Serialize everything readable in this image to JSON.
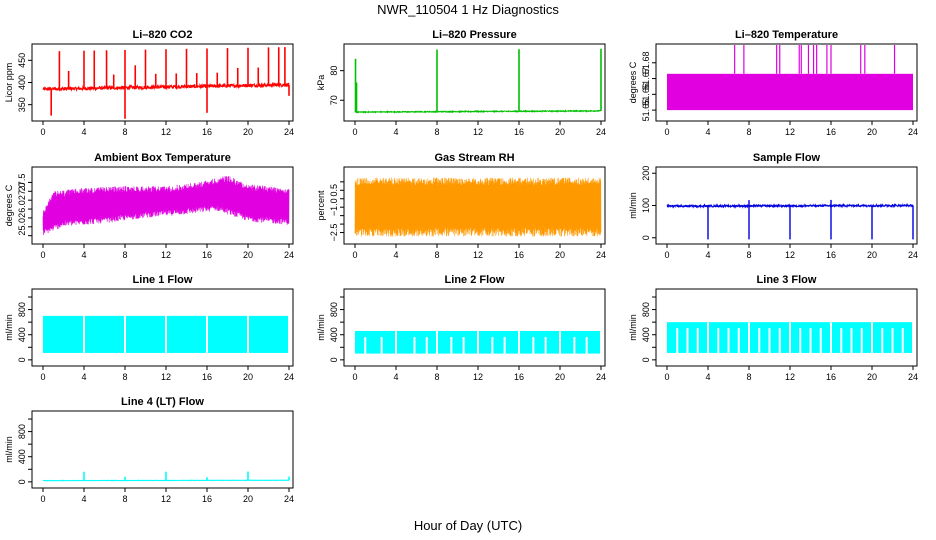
{
  "figure": {
    "title": "NWR_110504  1 Hz Diagnostics",
    "xlabel": "Hour of Day (UTC)"
  },
  "chart_data": [
    {
      "type": "line",
      "title": "Li–820 CO2",
      "xlabel": "",
      "ylabel": "Licor ppm",
      "xlim": [
        0,
        24
      ],
      "ylim": [
        320,
        480
      ],
      "xticks": [
        0,
        4,
        8,
        12,
        16,
        20,
        24
      ],
      "yticks": [
        350,
        400,
        450
      ],
      "ytick_labels": [
        "350",
        "400",
        "450"
      ],
      "series": [
        {
          "color": "#ff0000",
          "baseline": [
            385,
            395
          ],
          "noise": 4,
          "spikes": [
            [
              0.8,
              -60
            ],
            [
              1.6,
              85
            ],
            [
              2.5,
              40
            ],
            [
              4,
              85
            ],
            [
              5,
              85
            ],
            [
              6.2,
              85
            ],
            [
              6.9,
              30
            ],
            [
              8,
              85
            ],
            [
              8,
              -70
            ],
            [
              9,
              50
            ],
            [
              10,
              85
            ],
            [
              11,
              30
            ],
            [
              12,
              85
            ],
            [
              13,
              30
            ],
            [
              14,
              85
            ],
            [
              15,
              30
            ],
            [
              16,
              85
            ],
            [
              16,
              -60
            ],
            [
              17,
              30
            ],
            [
              18,
              85
            ],
            [
              19,
              40
            ],
            [
              20,
              85
            ],
            [
              21,
              40
            ],
            [
              22,
              85
            ],
            [
              23,
              85
            ],
            [
              23.6,
              85
            ],
            [
              24,
              -25
            ]
          ]
        }
      ]
    },
    {
      "type": "line",
      "title": "Li–820 Pressure",
      "xlabel": "",
      "ylabel": "kPa",
      "xlim": [
        0,
        24
      ],
      "ylim": [
        64,
        88
      ],
      "xticks": [
        0,
        4,
        8,
        12,
        16,
        20,
        24
      ],
      "yticks": [
        70,
        80
      ],
      "ytick_labels": [
        "70",
        "80"
      ],
      "series": [
        {
          "color": "#00c000",
          "baseline": [
            66,
            66.4
          ],
          "noise": 0.15,
          "spikes": [
            [
              0.05,
              18
            ],
            [
              0.15,
              10
            ],
            [
              8,
              21
            ],
            [
              16,
              21
            ],
            [
              24,
              21
            ]
          ]
        }
      ]
    },
    {
      "type": "line",
      "title": "Li–820 Temperature",
      "xlabel": "",
      "ylabel": "degrees C",
      "xlim": [
        0,
        24
      ],
      "ylim": [
        51.645,
        51.69
      ],
      "xticks": [
        0,
        4,
        8,
        12,
        16,
        20,
        24
      ],
      "yticks": [
        51.65,
        51.66,
        51.67,
        51.68
      ],
      "ytick_labels": [
        "51.65",
        "51.66",
        "51.67",
        "51.68"
      ],
      "series": [
        {
          "color": "#e000e0",
          "band": [
            51.65,
            51.673
          ],
          "spikes": [
            6.6,
            7.5,
            10.7,
            11,
            12.9,
            13.1,
            13.8,
            14.3,
            14.6,
            15.6,
            16,
            18.9,
            19.3,
            22.2
          ]
        }
      ]
    },
    {
      "type": "line",
      "title": "Ambient Box Temperature",
      "xlabel": "",
      "ylabel": "degrees C",
      "xlim": [
        0,
        24
      ],
      "ylim": [
        24.2,
        28.2
      ],
      "xticks": [
        0,
        4,
        8,
        12,
        16,
        20,
        24
      ],
      "yticks": [
        24.5,
        25,
        25.5,
        26,
        26.5,
        27,
        27.5
      ],
      "ytick_labels": [
        "",
        "25.0",
        "",
        "26.0",
        "",
        "27.0",
        "27.5"
      ],
      "series": [
        {
          "color": "#e000e0",
          "upper": [
            [
              0,
              25.9
            ],
            [
              1,
              27
            ],
            [
              4,
              27.2
            ],
            [
              8,
              27.3
            ],
            [
              12,
              27.3
            ],
            [
              15,
              27.5
            ],
            [
              18,
              27.9
            ],
            [
              20,
              27.4
            ],
            [
              24,
              27.2
            ]
          ],
          "lower": [
            [
              0,
              24.5
            ],
            [
              2,
              25
            ],
            [
              6,
              25.2
            ],
            [
              10,
              25.5
            ],
            [
              14,
              25.7
            ],
            [
              17,
              25.9
            ],
            [
              20,
              25.3
            ],
            [
              24,
              25.1
            ]
          ]
        }
      ]
    },
    {
      "type": "line",
      "title": "Gas Stream RH",
      "xlabel": "",
      "ylabel": "percent",
      "xlim": [
        0,
        24
      ],
      "ylim": [
        -3,
        1.2
      ],
      "xticks": [
        0,
        4,
        8,
        12,
        16,
        20,
        24
      ],
      "yticks": [
        -2.5,
        -2,
        -1.5,
        -1,
        -0.5,
        0,
        0.5
      ],
      "ytick_labels": [
        "−2.5",
        "",
        "",
        "−1.0",
        "",
        "0.5",
        ""
      ],
      "series": [
        {
          "color": "#ff9900",
          "band": [
            -2.2,
            0.3
          ],
          "noise": 0.9
        }
      ]
    },
    {
      "type": "line",
      "title": "Sample Flow",
      "xlabel": "",
      "ylabel": "ml/min",
      "xlim": [
        0,
        24
      ],
      "ylim": [
        -10,
        210
      ],
      "xticks": [
        0,
        4,
        8,
        12,
        16,
        20,
        24
      ],
      "yticks": [
        0,
        100,
        200
      ],
      "ytick_labels": [
        "0",
        "100",
        "200"
      ],
      "series": [
        {
          "color": "#0000e0",
          "baseline": [
            98,
            100
          ],
          "noise": 3,
          "drops": [
            4,
            8,
            12,
            16,
            20,
            24
          ],
          "bumps": [
            8,
            16
          ]
        }
      ]
    },
    {
      "type": "line",
      "title": "Line 1 Flow",
      "xlabel": "",
      "ylabel": "ml/min",
      "xlim": [
        0,
        24
      ],
      "ylim": [
        -50,
        1080
      ],
      "xticks": [
        0,
        4,
        8,
        12,
        16,
        20,
        24
      ],
      "yticks": [
        0,
        200,
        400,
        600,
        800,
        1000
      ],
      "ytick_labels": [
        "0",
        "",
        "400",
        "",
        "800",
        ""
      ],
      "series": [
        {
          "color": "#00ffff",
          "band": [
            110,
            700
          ],
          "gaps": [
            4,
            8,
            12,
            16,
            20,
            24
          ]
        }
      ]
    },
    {
      "type": "line",
      "title": "Line 2 Flow",
      "xlabel": "",
      "ylabel": "ml/min",
      "xlim": [
        0,
        24
      ],
      "ylim": [
        -50,
        1080
      ],
      "xticks": [
        0,
        4,
        8,
        12,
        16,
        20,
        24
      ],
      "yticks": [
        0,
        200,
        400,
        600,
        800,
        1000
      ],
      "ytick_labels": [
        "0",
        "",
        "400",
        "",
        "800",
        ""
      ],
      "series": [
        {
          "color": "#00ffff",
          "band": [
            100,
            460
          ],
          "gaps": [
            1,
            2.6,
            4,
            5.8,
            7,
            8,
            9.4,
            10.6,
            12,
            13.4,
            14.6,
            16,
            17.4,
            18.6,
            20,
            21.4,
            22.6,
            24
          ]
        }
      ]
    },
    {
      "type": "line",
      "title": "Line 3 Flow",
      "xlabel": "",
      "ylabel": "ml/min",
      "xlim": [
        0,
        24
      ],
      "ylim": [
        -50,
        1080
      ],
      "xticks": [
        0,
        4,
        8,
        12,
        16,
        20,
        24
      ],
      "yticks": [
        0,
        200,
        400,
        600,
        800,
        1000
      ],
      "ytick_labels": [
        "0",
        "",
        "400",
        "",
        "800",
        ""
      ],
      "series": [
        {
          "color": "#00ffff",
          "band": [
            110,
            600
          ],
          "gaps": [
            1,
            2,
            3,
            4,
            5,
            6,
            7,
            8,
            9,
            10,
            11,
            12,
            13,
            14,
            15,
            16,
            17,
            18,
            19,
            20,
            21,
            22,
            23,
            24
          ]
        }
      ]
    },
    {
      "type": "line",
      "title": "Line 4 (LT) Flow",
      "xlabel": "",
      "ylabel": "ml/min",
      "xlim": [
        0,
        24
      ],
      "ylim": [
        -50,
        1080
      ],
      "xticks": [
        0,
        4,
        8,
        12,
        16,
        20,
        24
      ],
      "yticks": [
        0,
        200,
        400,
        600,
        800,
        1000
      ],
      "ytick_labels": [
        "0",
        "",
        "400",
        "",
        "800",
        ""
      ],
      "series": [
        {
          "color": "#00ffff",
          "baseline": [
            20,
            25
          ],
          "noise": 3,
          "spikes": [
            [
              4,
              140
            ],
            [
              8,
              60
            ],
            [
              12,
              140
            ],
            [
              16,
              50
            ],
            [
              20,
              140
            ],
            [
              24,
              60
            ]
          ]
        }
      ]
    }
  ]
}
